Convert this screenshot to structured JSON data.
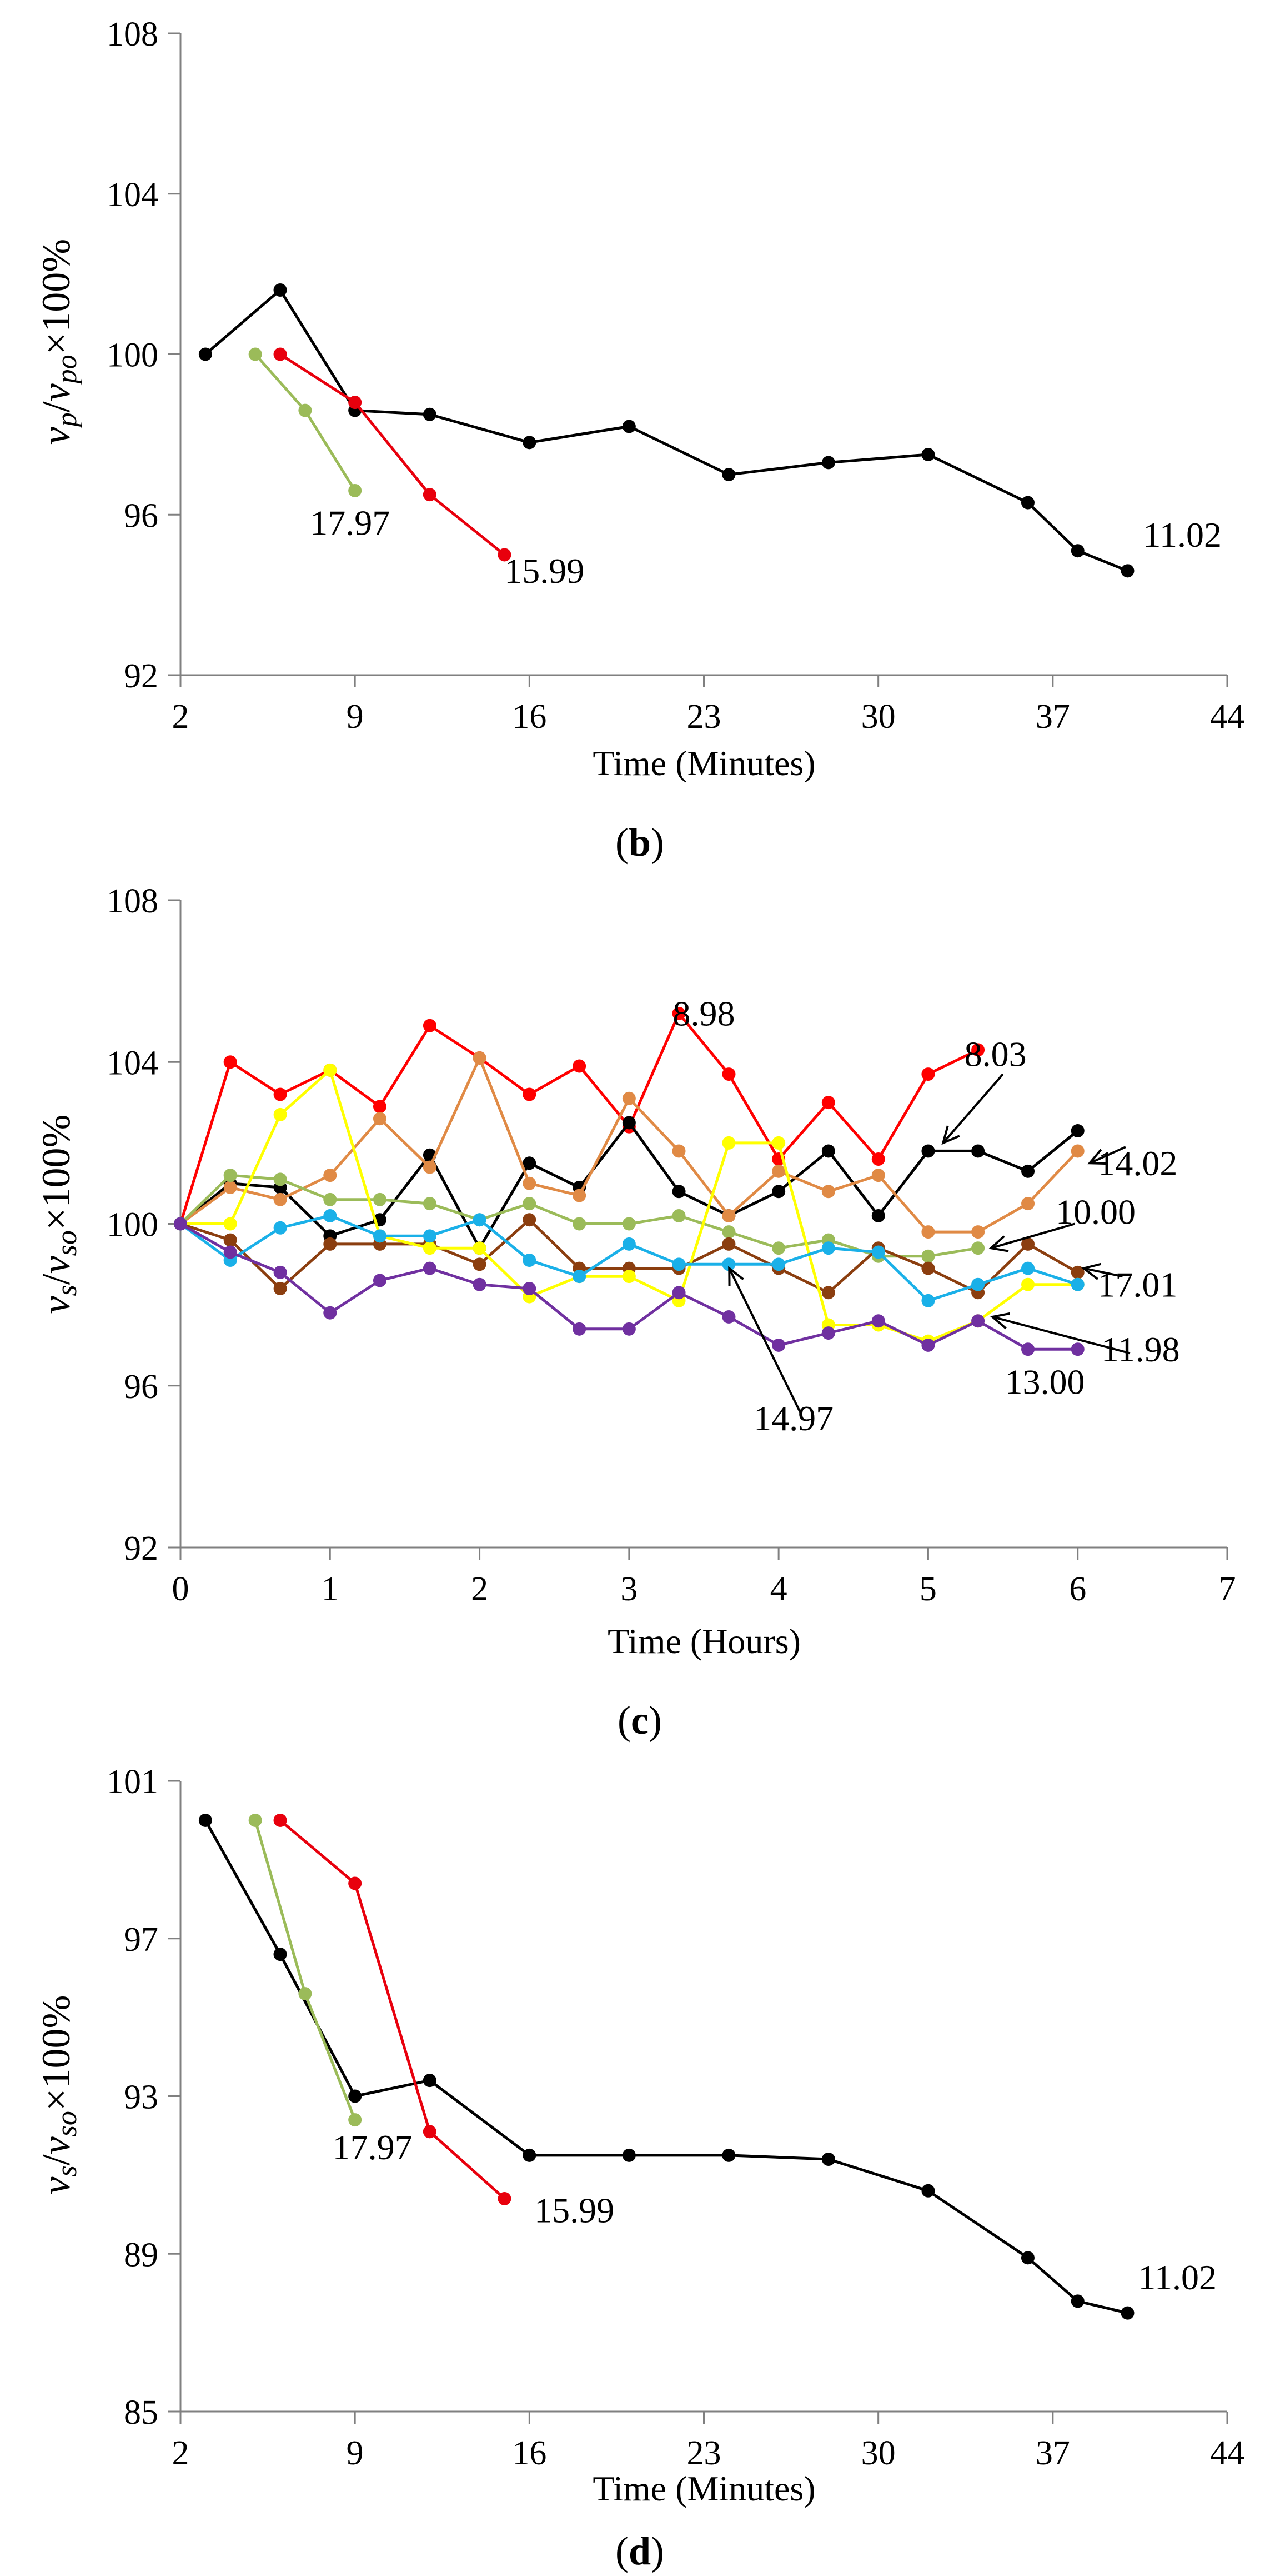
{
  "panels": [
    {
      "caption": "(b)",
      "caption_bold": "b",
      "ylabel": {
        "v": "v",
        "sub1": "p",
        "slash": "/",
        "v2": "v",
        "sub2": "po",
        "tail": "×100%"
      },
      "chart_data": {
        "type": "line",
        "xlabel": "Time (Minutes)",
        "xlim": [
          2,
          44
        ],
        "ylim": [
          92,
          108
        ],
        "xticks": [
          "2",
          "9",
          "16",
          "23",
          "30",
          "37",
          "44"
        ],
        "yticks": [
          "92",
          "96",
          "100",
          "104",
          "108"
        ],
        "grid": false,
        "series": [
          {
            "name": "11.02",
            "color": "#000000",
            "x": [
              3,
              6,
              9,
              12,
              16,
              20,
              24,
              28,
              32,
              36,
              38,
              40
            ],
            "y": [
              100.0,
              101.6,
              98.6,
              98.5,
              97.8,
              98.2,
              97.0,
              97.3,
              97.5,
              96.3,
              95.1,
              94.6
            ]
          },
          {
            "name": "15.99",
            "color": "#e8000d",
            "x": [
              6,
              9,
              12,
              15
            ],
            "y": [
              100.0,
              98.8,
              96.5,
              95.0
            ]
          },
          {
            "name": "17.97",
            "color": "#9bbb59",
            "x": [
              5,
              7,
              9
            ],
            "y": [
              100.0,
              98.6,
              96.6
            ]
          }
        ],
        "annotations": [
          {
            "text": "17.97",
            "x": 8.8,
            "y": 95.5
          },
          {
            "text": "15.99",
            "x": 16.6,
            "y": 94.3
          },
          {
            "text": "11.02",
            "x": 42.2,
            "y": 95.2
          }
        ]
      }
    },
    {
      "caption": "(c)",
      "caption_bold": "c",
      "ylabel": {
        "v": "v",
        "sub1": "s",
        "slash": "/",
        "v2": "v",
        "sub2": "so",
        "tail": "×100%"
      },
      "chart_data": {
        "type": "line",
        "xlabel": "Time (Hours)",
        "xlim": [
          0,
          7
        ],
        "ylim": [
          92,
          108
        ],
        "xticks": [
          "0",
          "1",
          "2",
          "3",
          "4",
          "5",
          "6",
          "7"
        ],
        "yticks": [
          "92",
          "96",
          "100",
          "104",
          "108"
        ],
        "grid": false,
        "series": [
          {
            "name": "8.98",
            "color": "#ff0000",
            "x": [
              0,
              0.333,
              0.667,
              1,
              1.333,
              1.667,
              2,
              2.333,
              2.667,
              3,
              3.333,
              3.667,
              4,
              4.333,
              4.667,
              5,
              5.333
            ],
            "y": [
              100.0,
              104.0,
              103.2,
              103.8,
              102.9,
              104.9,
              104.1,
              103.2,
              103.9,
              102.4,
              105.2,
              103.7,
              101.6,
              103.0,
              101.6,
              103.7,
              104.3
            ]
          },
          {
            "name": "8.03",
            "color": "#000000",
            "x": [
              0,
              0.333,
              0.667,
              1,
              1.333,
              1.667,
              2,
              2.333,
              2.667,
              3,
              3.333,
              3.667,
              4,
              4.333,
              4.667,
              5,
              5.333,
              5.667,
              6
            ],
            "y": [
              100.0,
              101.0,
              100.9,
              99.7,
              100.1,
              101.7,
              99.4,
              101.5,
              100.9,
              102.5,
              100.8,
              100.2,
              100.8,
              101.8,
              100.2,
              101.8,
              101.8,
              101.3,
              102.3
            ]
          },
          {
            "name": "14.02",
            "color": "#e08a45",
            "x": [
              0,
              0.333,
              0.667,
              1,
              1.333,
              1.667,
              2,
              2.333,
              2.667,
              3,
              3.333,
              3.667,
              4,
              4.333,
              4.667,
              5,
              5.333,
              5.667,
              6
            ],
            "y": [
              100.0,
              100.9,
              100.6,
              101.2,
              102.6,
              101.4,
              104.1,
              101.0,
              100.7,
              103.1,
              101.8,
              100.2,
              101.3,
              100.8,
              101.2,
              99.8,
              99.8,
              100.5,
              101.8
            ]
          },
          {
            "name": "10.00",
            "color": "#9bbb59",
            "x": [
              0,
              0.333,
              0.667,
              1,
              1.333,
              1.667,
              2,
              2.333,
              2.667,
              3,
              3.333,
              3.667,
              4,
              4.333,
              4.667,
              5,
              5.333
            ],
            "y": [
              100.0,
              101.2,
              101.1,
              100.6,
              100.6,
              100.5,
              100.1,
              100.5,
              100.0,
              100.0,
              100.2,
              99.8,
              99.4,
              99.6,
              99.2,
              99.2,
              99.4
            ]
          },
          {
            "name": "17.01",
            "color": "#8b3e0f",
            "x": [
              0,
              0.333,
              0.667,
              1,
              1.333,
              1.667,
              2,
              2.333,
              2.667,
              3,
              3.333,
              3.667,
              4,
              4.333,
              4.667,
              5,
              5.333,
              5.667,
              6
            ],
            "y": [
              100.0,
              99.6,
              98.4,
              99.5,
              99.5,
              99.5,
              99.0,
              100.1,
              98.9,
              98.9,
              98.9,
              99.5,
              98.9,
              98.3,
              99.4,
              98.9,
              98.3,
              99.5,
              98.8
            ]
          },
          {
            "name": "11.98",
            "color": "#ffff00",
            "x": [
              0,
              0.333,
              0.667,
              1,
              1.333,
              1.667,
              2,
              2.333,
              2.667,
              3,
              3.333,
              3.667,
              4,
              4.333,
              4.667,
              5,
              5.333,
              5.667,
              6
            ],
            "y": [
              100.0,
              100.0,
              102.7,
              103.8,
              99.7,
              99.4,
              99.4,
              98.2,
              98.7,
              98.7,
              98.1,
              102.0,
              102.0,
              97.5,
              97.5,
              97.1,
              97.6,
              98.5,
              98.5
            ]
          },
          {
            "name": "14.97",
            "color": "#1ab0e8",
            "x": [
              0,
              0.333,
              0.667,
              1,
              1.333,
              1.667,
              2,
              2.333,
              2.667,
              3,
              3.333,
              3.667,
              4,
              4.333,
              4.667,
              5,
              5.333,
              5.667,
              6
            ],
            "y": [
              100.0,
              99.1,
              99.9,
              100.2,
              99.7,
              99.7,
              100.1,
              99.1,
              98.7,
              99.5,
              99.0,
              99.0,
              99.0,
              99.4,
              99.3,
              98.1,
              98.5,
              98.9,
              98.5
            ]
          },
          {
            "name": "13.00",
            "color": "#7030a0",
            "x": [
              0,
              0.333,
              0.667,
              1,
              1.333,
              1.667,
              2,
              2.333,
              2.667,
              3,
              3.333,
              3.667,
              4,
              4.333,
              4.667,
              5,
              5.333,
              5.667,
              6
            ],
            "y": [
              100.0,
              99.3,
              98.8,
              97.8,
              98.6,
              98.9,
              98.5,
              98.4,
              97.4,
              97.4,
              98.3,
              97.7,
              97.0,
              97.3,
              97.6,
              97.0,
              97.6,
              96.9,
              96.9
            ]
          }
        ],
        "annotations": [
          {
            "text": "8.98",
            "x": 3.5,
            "y": 104.9
          },
          {
            "text": "8.03",
            "x": 5.45,
            "y": 103.9
          },
          {
            "text": "14.02",
            "x": 6.4,
            "y": 101.2
          },
          {
            "text": "10.00",
            "x": 6.12,
            "y": 100.0
          },
          {
            "text": "17.01",
            "x": 6.4,
            "y": 98.2
          },
          {
            "text": "11.98",
            "x": 6.42,
            "y": 96.6
          },
          {
            "text": "13.00",
            "x": 5.78,
            "y": 95.8
          },
          {
            "text": "14.97",
            "x": 4.1,
            "y": 94.9
          }
        ],
        "arrows": [
          {
            "from": [
              5.5,
              103.7
            ],
            "to": [
              5.1,
              102.0
            ]
          },
          {
            "from": [
              6.32,
              101.9
            ],
            "to": [
              6.08,
              101.5
            ]
          },
          {
            "from": [
              5.98,
              100.0
            ],
            "to": [
              5.42,
              99.4
            ]
          },
          {
            "from": [
              6.3,
              98.7
            ],
            "to": [
              6.04,
              98.9
            ]
          },
          {
            "from": [
              6.35,
              96.8
            ],
            "to": [
              5.43,
              97.7
            ]
          },
          {
            "from": [
              4.15,
              95.3
            ],
            "to": [
              3.67,
              98.9
            ]
          }
        ]
      }
    },
    {
      "caption": "(d)",
      "caption_bold": "d",
      "ylabel": {
        "v": "v",
        "sub1": "s",
        "slash": "/",
        "v2": "v",
        "sub2": "so",
        "tail": "×100%"
      },
      "chart_data": {
        "type": "line",
        "xlabel": "Time (Minutes)",
        "xlim": [
          2,
          44
        ],
        "ylim": [
          85,
          101
        ],
        "xticks": [
          "2",
          "9",
          "16",
          "23",
          "30",
          "37",
          "44"
        ],
        "yticks": [
          "85",
          "89",
          "93",
          "97",
          "101"
        ],
        "grid": false,
        "series": [
          {
            "name": "11.02",
            "color": "#000000",
            "x": [
              3,
              6,
              9,
              12,
              16,
              20,
              24,
              28,
              32,
              36,
              38,
              40
            ],
            "y": [
              100.0,
              96.6,
              93.0,
              93.4,
              91.5,
              91.5,
              91.5,
              91.4,
              90.6,
              88.9,
              87.8,
              87.5
            ]
          },
          {
            "name": "15.99",
            "color": "#e8000d",
            "x": [
              6,
              9,
              12,
              15
            ],
            "y": [
              100.0,
              98.4,
              92.1,
              90.4
            ]
          },
          {
            "name": "17.97",
            "color": "#9bbb59",
            "x": [
              5,
              7,
              9
            ],
            "y": [
              100.0,
              95.6,
              92.4
            ]
          }
        ],
        "annotations": [
          {
            "text": "17.97",
            "x": 9.7,
            "y": 91.4
          },
          {
            "text": "15.99",
            "x": 17.8,
            "y": 89.8
          },
          {
            "text": "11.02",
            "x": 42.0,
            "y": 88.1
          }
        ]
      }
    }
  ]
}
